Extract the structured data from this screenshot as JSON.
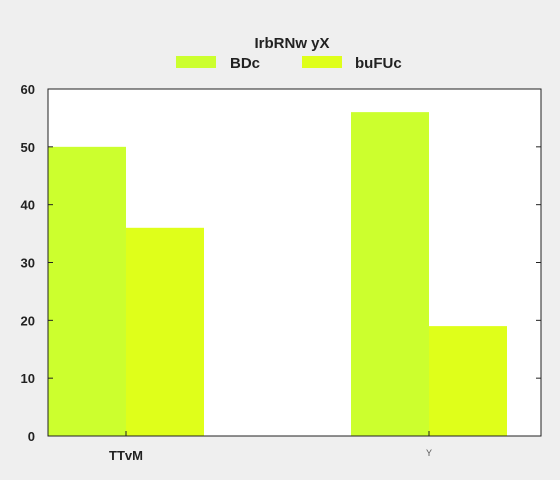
{
  "chart_data": {
    "type": "bar",
    "legend_title": "IrbRNw yX",
    "categories": [
      "TTvM",
      "Y"
    ],
    "series": [
      {
        "name": "BDc",
        "values": [
          50,
          56
        ],
        "color": "#ccff2e"
      },
      {
        "name": "buFUc",
        "values": [
          36,
          19
        ],
        "color": "#dfff1a"
      }
    ],
    "ylim": [
      0,
      60
    ],
    "yticks": [
      0,
      10,
      20,
      30,
      40,
      50,
      60
    ],
    "legend_position": "top-center",
    "grid": false,
    "background": "#efefef",
    "plot_background": "#ffffff"
  }
}
